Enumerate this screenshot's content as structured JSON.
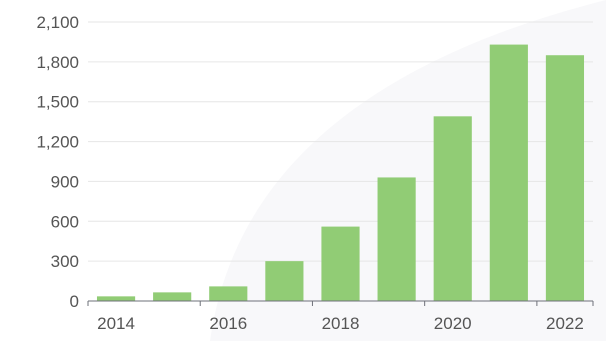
{
  "chart_data": {
    "type": "bar",
    "title": "",
    "xlabel": "",
    "ylabel": "",
    "categories": [
      "2014",
      "2015",
      "2016",
      "2017",
      "2018",
      "2019",
      "2020",
      "2021",
      "2022"
    ],
    "x_tick_labels": [
      "2014",
      "2016",
      "2018",
      "2020",
      "2022"
    ],
    "values": [
      35,
      65,
      110,
      300,
      560,
      930,
      1390,
      1930,
      1850
    ],
    "ylim": [
      0,
      2100
    ],
    "y_ticks": [
      0,
      300,
      600,
      900,
      1200,
      1500,
      1800,
      2100
    ],
    "y_tick_labels": [
      "0",
      "300",
      "600",
      "900",
      "1,200",
      "1,500",
      "1,800",
      "2,100"
    ],
    "grid": true,
    "legend": "none",
    "colors": {
      "bar": "#91cc75",
      "grid": "#e6e6e6",
      "axis": "#6e7079",
      "label": "#555555",
      "backdrop": "#f3f4f7"
    }
  }
}
